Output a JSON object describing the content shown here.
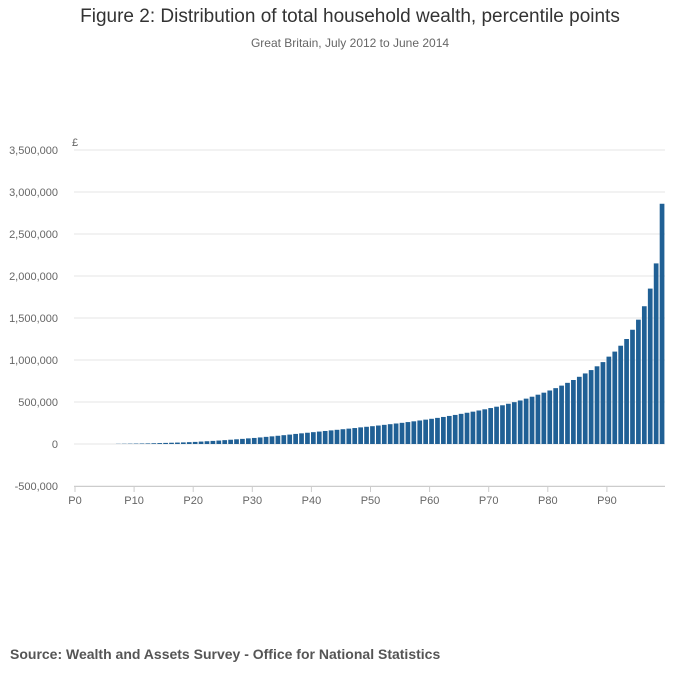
{
  "header": {
    "title": "Figure 2: Distribution of total household wealth, percentile points",
    "subtitle": "Great Britain, July 2012 to June 2014"
  },
  "footer": {
    "source": "Source: Wealth and Assets Survey - Office for National Statistics"
  },
  "colors": {
    "bar": "#206095",
    "grid": "#e6e6e6",
    "axis": "#cccccc",
    "text": "#666666"
  },
  "chart_data": {
    "type": "bar",
    "title": "Figure 2: Distribution of total household wealth, percentile points",
    "subtitle": "Great Britain, July 2012 to June 2014",
    "xlabel": "",
    "ylabel": "£",
    "ylim": [
      -500000,
      3500000
    ],
    "yticks": [
      -500000,
      0,
      500000,
      1000000,
      1500000,
      2000000,
      2500000,
      3000000,
      3500000
    ],
    "ytick_labels": [
      "-500,000",
      "0",
      "500,000",
      "1,000,000",
      "1,500,000",
      "2,000,000",
      "2,500,000",
      "3,000,000",
      "3,500,000"
    ],
    "xtick_labels": [
      "P0",
      "P10",
      "P20",
      "P30",
      "P40",
      "P50",
      "P60",
      "P70",
      "P80",
      "P90"
    ],
    "grid": true,
    "categories": [
      "P0",
      "P1",
      "P2",
      "P3",
      "P4",
      "P5",
      "P6",
      "P7",
      "P8",
      "P9",
      "P10",
      "P11",
      "P12",
      "P13",
      "P14",
      "P15",
      "P16",
      "P17",
      "P18",
      "P19",
      "P20",
      "P21",
      "P22",
      "P23",
      "P24",
      "P25",
      "P26",
      "P27",
      "P28",
      "P29",
      "P30",
      "P31",
      "P32",
      "P33",
      "P34",
      "P35",
      "P36",
      "P37",
      "P38",
      "P39",
      "P40",
      "P41",
      "P42",
      "P43",
      "P44",
      "P45",
      "P46",
      "P47",
      "P48",
      "P49",
      "P50",
      "P51",
      "P52",
      "P53",
      "P54",
      "P55",
      "P56",
      "P57",
      "P58",
      "P59",
      "P60",
      "P61",
      "P62",
      "P63",
      "P64",
      "P65",
      "P66",
      "P67",
      "P68",
      "P69",
      "P70",
      "P71",
      "P72",
      "P73",
      "P74",
      "P75",
      "P76",
      "P77",
      "P78",
      "P79",
      "P80",
      "P81",
      "P82",
      "P83",
      "P84",
      "P85",
      "P86",
      "P87",
      "P88",
      "P89",
      "P90",
      "P91",
      "P92",
      "P93",
      "P94",
      "P95",
      "P96",
      "P97",
      "P98",
      "P99"
    ],
    "values": [
      0,
      0,
      0,
      0,
      0,
      0,
      0,
      2000,
      3000,
      4000,
      5000,
      6000,
      7000,
      9000,
      11000,
      13000,
      15000,
      17000,
      19000,
      22000,
      25000,
      29000,
      33000,
      37000,
      41000,
      46000,
      51000,
      56000,
      61000,
      67000,
      72000,
      78000,
      85000,
      91000,
      98000,
      105000,
      112000,
      120000,
      127000,
      134000,
      141000,
      148000,
      155000,
      162000,
      169000,
      176000,
      183000,
      190000,
      198000,
      205000,
      212000,
      220000,
      228000,
      236000,
      244000,
      252000,
      261000,
      270000,
      280000,
      290000,
      300000,
      311000,
      322000,
      334000,
      346000,
      359000,
      372000,
      385000,
      399000,
      413000,
      428000,
      444000,
      461000,
      479000,
      498000,
      518000,
      540000,
      563000,
      587000,
      611000,
      637000,
      665000,
      695000,
      728000,
      762000,
      800000,
      840000,
      880000,
      925000,
      975000,
      1040000,
      1100000,
      1170000,
      1250000,
      1360000,
      1480000,
      1640000,
      1850000,
      2150000,
      2860000
    ]
  }
}
